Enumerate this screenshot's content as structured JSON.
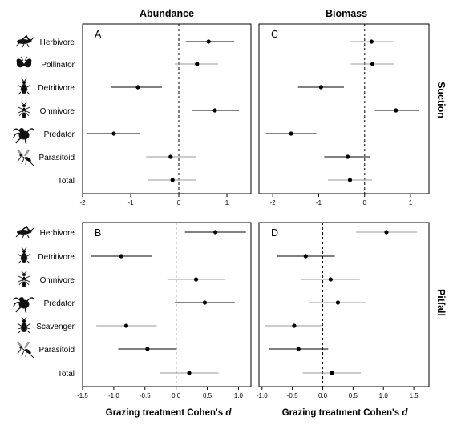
{
  "figure": {
    "col_titles": [
      "Abundance",
      "Biomass"
    ],
    "row_titles": [
      "Suction",
      "Pitfall"
    ],
    "xlabel_prefix": "Grazing treatment Cohen's ",
    "xlabel_symbol": "d"
  },
  "icons": {
    "Herbivore": "grasshopper-icon",
    "Pollinator": "butterfly-icon",
    "Detritivore": "beetle-icon",
    "Omnivore": "ant-icon",
    "Predator": "spider-icon",
    "Parasitoid": "wasp-icon",
    "Scavenger": "carabid-beetle-icon"
  },
  "colors": {
    "strong_ci": "#000000",
    "weak_ci": "#999999",
    "point": "#000000",
    "zero_line": "#000000"
  },
  "chart_data": [
    {
      "panel": "A",
      "type": "scatter",
      "title": "Abundance",
      "ylabel": "Suction",
      "categories": [
        "Herbivore",
        "Pollinator",
        "Detritivore",
        "Omnivore",
        "Predator",
        "Parasitoid",
        "Total"
      ],
      "x": [
        0.62,
        0.38,
        -0.85,
        0.75,
        -1.35,
        -0.17,
        -0.13
      ],
      "ci_low": [
        0.15,
        -0.08,
        -1.4,
        0.27,
        -1.9,
        -0.68,
        -0.65
      ],
      "ci_high": [
        1.15,
        0.82,
        -0.35,
        1.25,
        -0.8,
        0.35,
        0.35
      ],
      "ci_significant": [
        true,
        false,
        true,
        true,
        true,
        false,
        false
      ],
      "xlim": [
        -2,
        1.5
      ],
      "xticks": [
        -2,
        -1,
        0,
        1
      ],
      "reference_line": 0
    },
    {
      "panel": "C",
      "type": "scatter",
      "title": "Biomass",
      "ylabel": "Suction",
      "categories": [
        "Herbivore",
        "Pollinator",
        "Detritivore",
        "Omnivore",
        "Predator",
        "Parasitoid",
        "Total"
      ],
      "x": [
        0.15,
        0.17,
        -0.95,
        0.68,
        -1.6,
        -0.37,
        -0.32
      ],
      "ci_low": [
        -0.3,
        -0.3,
        -1.45,
        0.22,
        -2.15,
        -0.88,
        -0.8
      ],
      "ci_high": [
        0.62,
        0.64,
        -0.45,
        1.18,
        -1.05,
        0.12,
        0.16
      ],
      "ci_significant": [
        false,
        false,
        true,
        true,
        true,
        true,
        false
      ],
      "xlim": [
        -2.3,
        1.4
      ],
      "xticks": [
        -2,
        -1,
        0,
        1
      ],
      "reference_line": 0
    },
    {
      "panel": "B",
      "type": "scatter",
      "title": "",
      "ylabel": "Pitfall",
      "xlabel": "Grazing treatment Cohen's d",
      "categories": [
        "Herbivore",
        "Detritivore",
        "Omnivore",
        "Predator",
        "Scavenger",
        "Parasitoid",
        "Total"
      ],
      "x": [
        0.63,
        -0.88,
        0.32,
        0.46,
        -0.8,
        -0.46,
        0.21
      ],
      "ci_low": [
        0.14,
        -1.37,
        -0.14,
        -0.02,
        -1.28,
        -0.93,
        -0.26
      ],
      "ci_high": [
        1.12,
        -0.39,
        0.79,
        0.94,
        -0.31,
        0.01,
        0.68
      ],
      "ci_significant": [
        true,
        true,
        false,
        true,
        false,
        true,
        false
      ],
      "xlim": [
        -1.5,
        1.2
      ],
      "xticks": [
        -1.5,
        -1.0,
        -0.5,
        0.0,
        0.5,
        1.0
      ],
      "reference_line": 0
    },
    {
      "panel": "D",
      "type": "scatter",
      "title": "",
      "ylabel": "Pitfall",
      "xlabel": "Grazing treatment Cohen's d",
      "categories": [
        "Herbivore",
        "Detritivore",
        "Omnivore",
        "Predator",
        "Scavenger",
        "Parasitoid",
        "Total"
      ],
      "x": [
        1.05,
        -0.28,
        0.13,
        0.25,
        -0.47,
        -0.4,
        0.15
      ],
      "ci_low": [
        0.55,
        -0.75,
        -0.35,
        -0.22,
        -0.95,
        -0.88,
        -0.33
      ],
      "ci_high": [
        1.55,
        0.2,
        0.61,
        0.72,
        0.0,
        0.09,
        0.63
      ],
      "ci_significant": [
        false,
        true,
        false,
        false,
        false,
        true,
        false
      ],
      "xlim": [
        -1.05,
        1.75
      ],
      "xticks": [
        -1.0,
        -0.5,
        0.0,
        0.5,
        1.0,
        1.5
      ],
      "reference_line": 0
    }
  ]
}
